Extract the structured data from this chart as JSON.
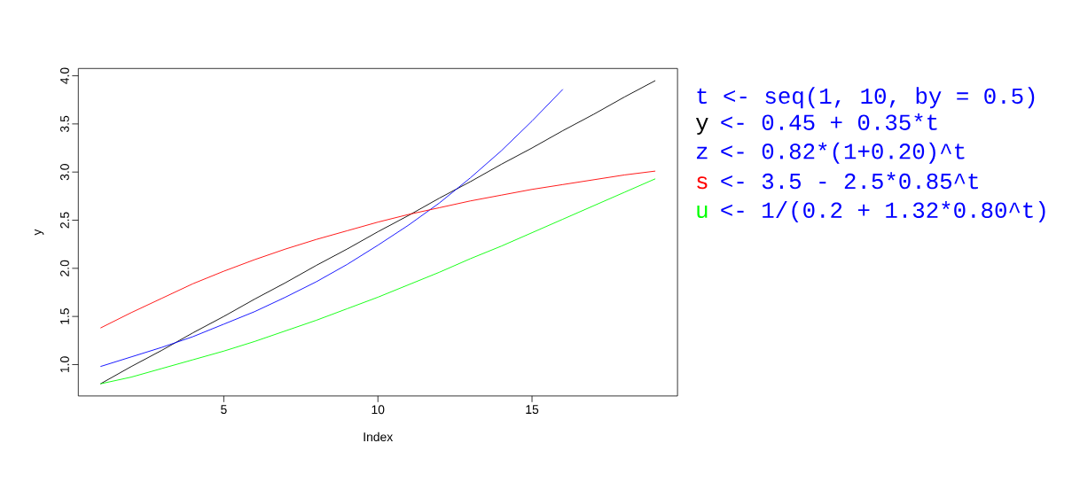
{
  "chart_data": {
    "type": "line",
    "xlabel": "Index",
    "ylabel": "y",
    "x": [
      1,
      2,
      3,
      4,
      5,
      6,
      7,
      8,
      9,
      10,
      11,
      12,
      13,
      14,
      15,
      16,
      17,
      18,
      19
    ],
    "series": [
      {
        "name": "y",
        "color": "#000000",
        "values": [
          0.8,
          0.98,
          1.15,
          1.33,
          1.5,
          1.68,
          1.85,
          2.03,
          2.2,
          2.38,
          2.55,
          2.73,
          2.9,
          3.08,
          3.25,
          3.43,
          3.6,
          3.78,
          3.95
        ]
      },
      {
        "name": "z",
        "color": "#0000ff",
        "values": [
          0.98,
          1.08,
          1.18,
          1.29,
          1.42,
          1.55,
          1.7,
          1.86,
          2.04,
          2.24,
          2.45,
          2.68,
          2.94,
          3.22,
          3.53,
          3.86,
          null,
          null,
          null
        ]
      },
      {
        "name": "s",
        "color": "#ff0000",
        "values": [
          1.38,
          1.54,
          1.69,
          1.84,
          1.97,
          2.09,
          2.2,
          2.3,
          2.39,
          2.48,
          2.56,
          2.63,
          2.7,
          2.76,
          2.82,
          2.87,
          2.92,
          2.97,
          3.01
        ]
      },
      {
        "name": "u",
        "color": "#00ff00",
        "values": [
          0.8,
          0.87,
          0.96,
          1.05,
          1.14,
          1.24,
          1.35,
          1.46,
          1.58,
          1.7,
          1.83,
          1.96,
          2.1,
          2.23,
          2.37,
          2.51,
          2.65,
          2.79,
          2.93
        ]
      }
    ],
    "xlim": [
      0.28,
      19.72
    ],
    "xticks": [
      5,
      10,
      15
    ],
    "ylim": [
      0.674,
      4.076
    ],
    "yticks": [
      {
        "value": 1,
        "label": "1.0"
      },
      {
        "value": 1.5,
        "label": "1.5"
      },
      {
        "value": 2,
        "label": "2.0"
      },
      {
        "value": 2.5,
        "label": "2.5"
      },
      {
        "value": 3,
        "label": "3.0"
      },
      {
        "value": 3.5,
        "label": "3.5"
      },
      {
        "value": 4,
        "label": "4.0"
      }
    ],
    "legend": "right",
    "annotations": [
      "t <- seq(1, 10, by = 0.5)",
      "<- 0.45 + 0.35*t",
      "<- 0.82*(1+0.20)^t",
      "<- 3.5 - 2.5*0.85^t",
      "<- 1/(0.2 + 1.32*0.80^t)"
    ]
  }
}
